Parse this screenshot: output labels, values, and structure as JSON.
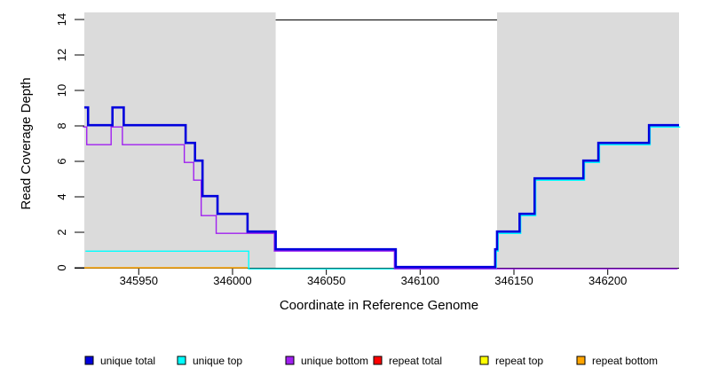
{
  "chart_data": {
    "type": "line",
    "line_style": "step-after",
    "title": "",
    "xlabel": "Coordinate in Reference Genome",
    "ylabel": "Read Coverage Depth",
    "xlim": [
      345921,
      346238
    ],
    "ylim": [
      0,
      14
    ],
    "x_ticks": [
      345950,
      346000,
      346050,
      346100,
      346150,
      346200
    ],
    "y_ticks": [
      0,
      2,
      4,
      6,
      8,
      10,
      12,
      14
    ],
    "grid": false,
    "legend_position": "bottom",
    "box_top_color": "#000000",
    "shade_color": "#dbdbdb",
    "shaded_regions": [
      {
        "x_start": 345921,
        "x_end": 346023
      },
      {
        "x_start": 346141,
        "x_end": 346238
      }
    ],
    "series": [
      {
        "name": "repeat total",
        "color": "#ff0000",
        "line_width": 1,
        "points": [
          [
            345921,
            0
          ],
          [
            346008,
            0
          ]
        ]
      },
      {
        "name": "repeat top",
        "color": "#ffff00",
        "line_width": 1,
        "points": [
          [
            345921,
            0
          ],
          [
            346008,
            0
          ]
        ]
      },
      {
        "name": "repeat bottom",
        "color": "#ffa500",
        "line_width": 1.4,
        "points": [
          [
            345921,
            0
          ],
          [
            346008,
            0
          ]
        ]
      },
      {
        "name": "unique top",
        "color": "#00ffff",
        "line_width": 1.4,
        "points": [
          [
            345921,
            1
          ],
          [
            346008,
            0
          ],
          [
            346140,
            1
          ],
          [
            346141,
            2
          ],
          [
            346153,
            3
          ],
          [
            346161,
            5
          ],
          [
            346187,
            6
          ],
          [
            346195,
            7
          ],
          [
            346222,
            8
          ],
          [
            346238,
            8
          ]
        ]
      },
      {
        "name": "unique bottom",
        "color": "#a020f0",
        "line_width": 1.4,
        "points": [
          [
            345921,
            8
          ],
          [
            345923,
            7
          ],
          [
            345936,
            8
          ],
          [
            345942,
            7
          ],
          [
            345975,
            6
          ],
          [
            345980,
            5
          ],
          [
            345984,
            3
          ],
          [
            345992,
            2
          ],
          [
            346023,
            1
          ],
          [
            346087,
            0
          ],
          [
            346238,
            0
          ]
        ]
      },
      {
        "name": "unique total",
        "color": "#0000dd",
        "line_width": 2.6,
        "points": [
          [
            345921,
            9
          ],
          [
            345923,
            8
          ],
          [
            345936,
            9
          ],
          [
            345942,
            8
          ],
          [
            345975,
            7
          ],
          [
            345980,
            6
          ],
          [
            345984,
            4
          ],
          [
            345992,
            3
          ],
          [
            346008,
            2
          ],
          [
            346023,
            1
          ],
          [
            346087,
            0
          ],
          [
            346140,
            1
          ],
          [
            346141,
            2
          ],
          [
            346153,
            3
          ],
          [
            346161,
            5
          ],
          [
            346187,
            6
          ],
          [
            346195,
            7
          ],
          [
            346222,
            8
          ],
          [
            346238,
            8
          ]
        ]
      }
    ],
    "legend": [
      {
        "label": "unique total",
        "color": "#0000dd"
      },
      {
        "label": "unique top",
        "color": "#00ffff"
      },
      {
        "label": "unique bottom",
        "color": "#a020f0"
      },
      {
        "label": "repeat total",
        "color": "#ff0000"
      },
      {
        "label": "repeat top",
        "color": "#ffff00"
      },
      {
        "label": "repeat bottom",
        "color": "#ffa500"
      }
    ]
  }
}
